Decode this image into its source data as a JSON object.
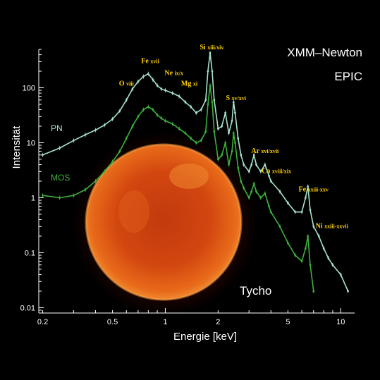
{
  "chart_data": {
    "type": "line",
    "title": [
      "XMM–Newton",
      "EPIC"
    ],
    "xlabel": "Energie [keV]",
    "ylabel": "Intensität",
    "x_scale": "log",
    "y_scale": "log",
    "xlim": [
      0.19,
      12
    ],
    "ylim": [
      0.008,
      500
    ],
    "x_ticks": [
      {
        "value": 0.2,
        "label": "0.2"
      },
      {
        "value": 0.5,
        "label": "0.5"
      },
      {
        "value": 1,
        "label": "1"
      },
      {
        "value": 2,
        "label": "2"
      },
      {
        "value": 5,
        "label": "5"
      },
      {
        "value": 10,
        "label": "10"
      }
    ],
    "y_ticks": [
      {
        "value": 0.01,
        "label": "0.01"
      },
      {
        "value": 0.1,
        "label": "0.1"
      },
      {
        "value": 1,
        "label": "1"
      },
      {
        "value": 10,
        "label": "10"
      },
      {
        "value": 100,
        "label": "100"
      }
    ],
    "series": [
      {
        "name": "PN",
        "color": "#a6e3cc",
        "x": [
          0.2,
          0.25,
          0.3,
          0.35,
          0.4,
          0.45,
          0.5,
          0.55,
          0.6,
          0.65,
          0.7,
          0.75,
          0.8,
          0.85,
          0.9,
          0.95,
          1.0,
          1.1,
          1.2,
          1.3,
          1.4,
          1.5,
          1.6,
          1.7,
          1.75,
          1.8,
          1.85,
          1.9,
          2.0,
          2.1,
          2.2,
          2.3,
          2.4,
          2.45,
          2.5,
          2.6,
          2.7,
          2.8,
          3.0,
          3.1,
          3.2,
          3.3,
          3.5,
          3.7,
          3.9,
          4.0,
          4.5,
          5.0,
          5.5,
          6.0,
          6.3,
          6.5,
          6.7,
          7.0,
          7.5,
          8.0,
          8.5,
          9.0,
          10.0,
          11.0
        ],
        "y": [
          6,
          8,
          11,
          14,
          17,
          21,
          27,
          38,
          60,
          95,
          130,
          160,
          180,
          140,
          110,
          95,
          90,
          80,
          70,
          55,
          45,
          35,
          40,
          60,
          200,
          430,
          200,
          60,
          18,
          20,
          35,
          15,
          25,
          55,
          35,
          12,
          6,
          4,
          3,
          4,
          6,
          4,
          3,
          4,
          2.5,
          2.0,
          1.3,
          0.8,
          0.55,
          0.55,
          1.0,
          1.6,
          0.6,
          0.3,
          0.2,
          0.12,
          0.08,
          0.06,
          0.04,
          0.02
        ]
      },
      {
        "name": "MOS",
        "color": "#3cb23c",
        "x": [
          0.2,
          0.25,
          0.3,
          0.35,
          0.4,
          0.45,
          0.5,
          0.55,
          0.6,
          0.65,
          0.7,
          0.75,
          0.8,
          0.85,
          0.9,
          0.95,
          1.0,
          1.1,
          1.2,
          1.3,
          1.4,
          1.5,
          1.6,
          1.7,
          1.75,
          1.8,
          1.85,
          1.9,
          2.0,
          2.1,
          2.2,
          2.3,
          2.4,
          2.45,
          2.5,
          2.6,
          2.7,
          2.8,
          3.0,
          3.1,
          3.2,
          3.3,
          3.5,
          3.7,
          3.9,
          4.0,
          4.5,
          5.0,
          5.5,
          6.0,
          6.3,
          6.5,
          6.7,
          7.0
        ],
        "y": [
          1.1,
          1.0,
          1.1,
          1.4,
          2.0,
          3.0,
          4.5,
          7.0,
          12,
          20,
          30,
          40,
          45,
          40,
          32,
          28,
          25,
          22,
          18,
          15,
          12,
          10,
          11,
          16,
          50,
          110,
          55,
          16,
          5,
          6,
          10,
          4,
          7,
          15,
          10,
          3.5,
          2,
          1.5,
          1.0,
          1.3,
          1.8,
          1.3,
          1.0,
          1.2,
          0.7,
          0.55,
          0.3,
          0.15,
          0.09,
          0.07,
          0.12,
          0.2,
          0.06,
          0.02
        ]
      }
    ],
    "annotations": [
      {
        "main": "O ",
        "sub": "VIII",
        "x": 0.6,
        "y": 110
      },
      {
        "main": "Fe ",
        "sub": "XVII",
        "x": 0.82,
        "y": 280
      },
      {
        "main": "Ne ",
        "sub": "IX/X",
        "x": 1.12,
        "y": 170
      },
      {
        "main": "Mg ",
        "sub": "XI",
        "x": 1.37,
        "y": 110
      },
      {
        "main": "Si ",
        "sub": "XIII/XIV",
        "x": 1.84,
        "y": 500
      },
      {
        "main": "S ",
        "sub": "XV/XVI",
        "x": 2.53,
        "y": 60
      },
      {
        "main": "Ar ",
        "sub": "XVI/XVII",
        "x": 3.7,
        "y": 6.5
      },
      {
        "main": "Ca ",
        "sub": "XVIII/XIX",
        "x": 4.3,
        "y": 2.8
      },
      {
        "main": "Fe ",
        "sub": "XXIII-XXV",
        "x": 7.0,
        "y": 1.3
      },
      {
        "main": "Ni ",
        "sub": "XXIII-XXVII",
        "x": 8.9,
        "y": 0.28
      }
    ],
    "inset": {
      "label": "Tycho",
      "description": "X-ray image of the Tycho supernova remnant"
    }
  }
}
